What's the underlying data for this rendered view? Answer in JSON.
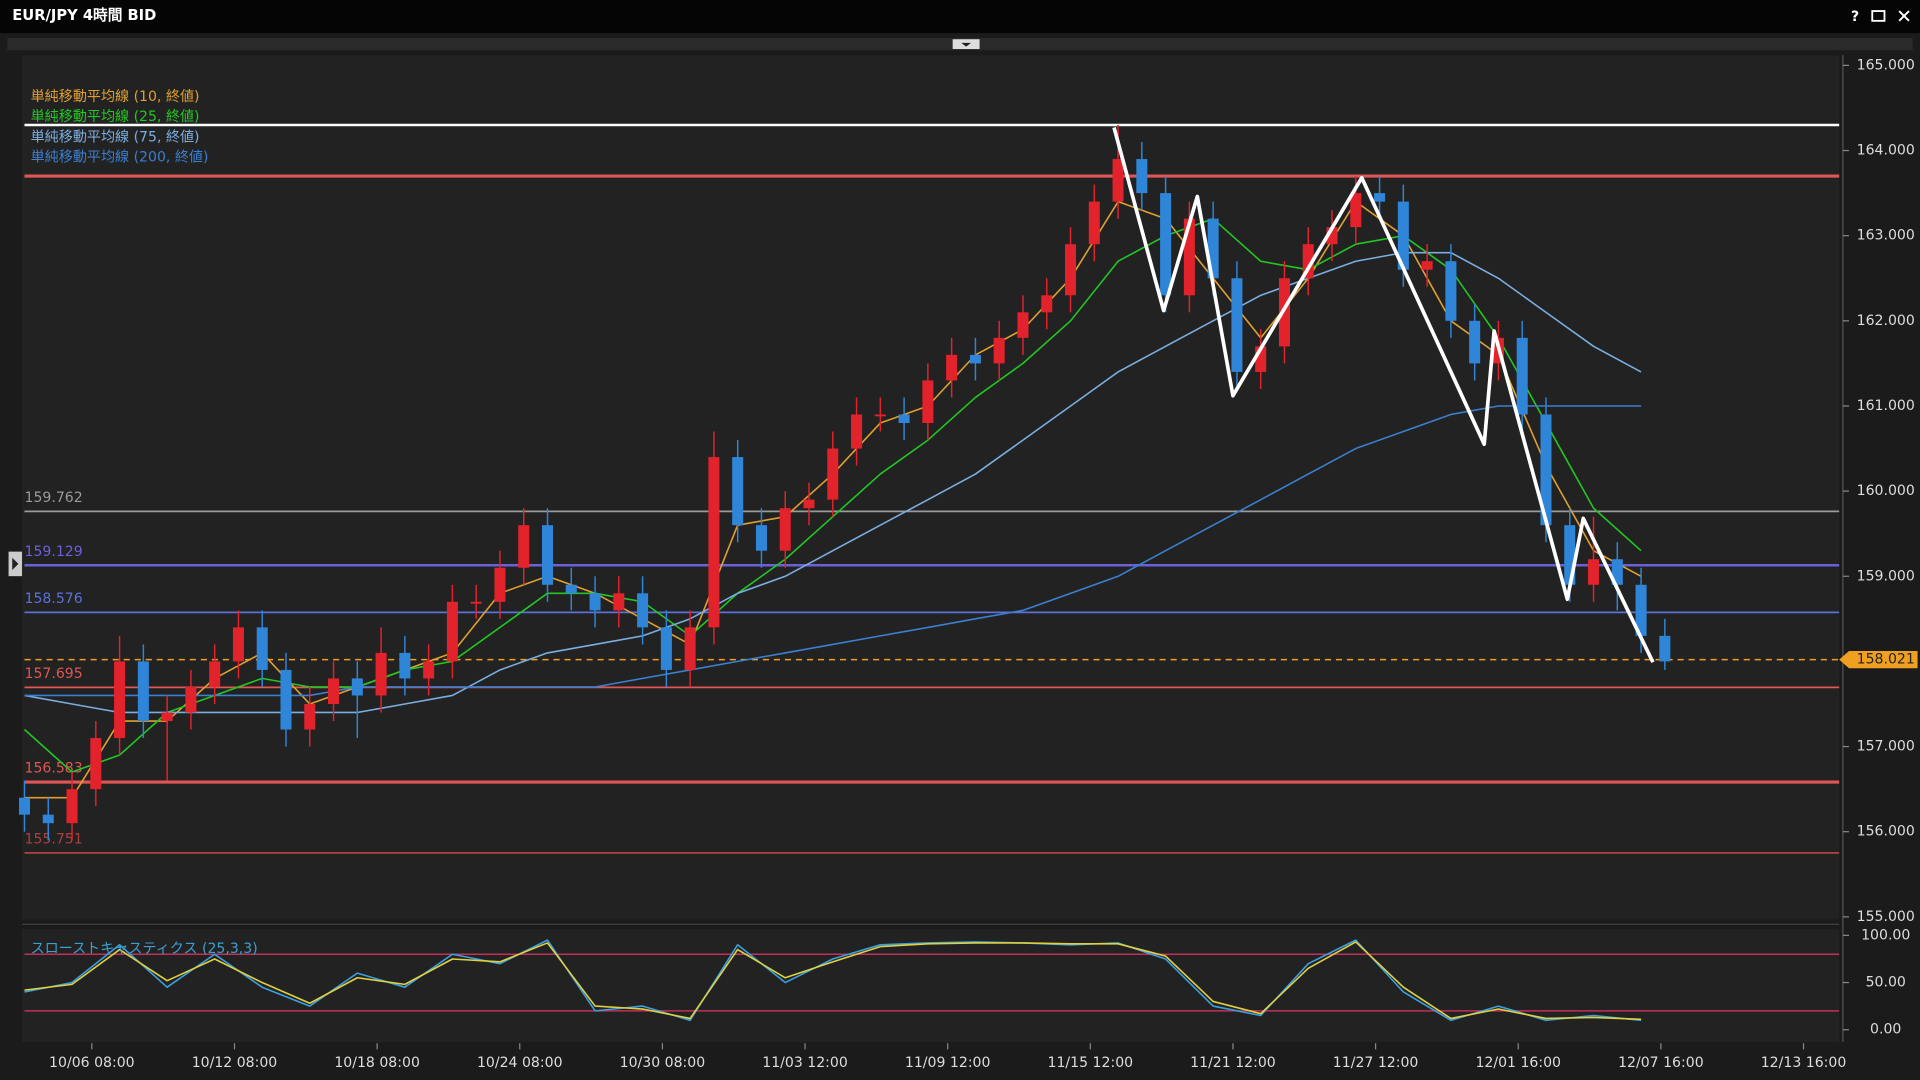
{
  "window": {
    "title": "EUR/JPY 4時間 BID",
    "help": "?"
  },
  "chart_data": [
    {
      "type": "candlestick",
      "up_color": "#e3232c",
      "down_color": "#2f86d8",
      "xlim": [
        0,
        458
      ],
      "ylim": [
        154.97,
        165.12
      ],
      "yticks": [
        {
          "value": 165,
          "label": "165.000"
        },
        {
          "value": 164,
          "label": "164.000"
        },
        {
          "value": 163,
          "label": "163.000"
        },
        {
          "value": 162,
          "label": "162.000"
        },
        {
          "value": 161,
          "label": "161.000"
        },
        {
          "value": 160,
          "label": "160.000"
        },
        {
          "value": 159,
          "label": "159.000"
        },
        {
          "value": 158,
          "label": "158.000"
        },
        {
          "value": 157,
          "label": "157.000"
        },
        {
          "value": 156,
          "label": "156.000"
        },
        {
          "value": 155,
          "label": "155.000"
        }
      ],
      "xticks": [
        {
          "value": 17,
          "label": "10/06 08:00"
        },
        {
          "value": 53,
          "label": "10/12 08:00"
        },
        {
          "value": 89,
          "label": "10/18 08:00"
        },
        {
          "value": 125,
          "label": "10/24 08:00"
        },
        {
          "value": 161,
          "label": "10/30 08:00"
        },
        {
          "value": 197,
          "label": "11/03 12:00"
        },
        {
          "value": 233,
          "label": "11/09 12:00"
        },
        {
          "value": 269,
          "label": "11/15 12:00"
        },
        {
          "value": 305,
          "label": "11/21 12:00"
        },
        {
          "value": 341,
          "label": "11/27 12:00"
        },
        {
          "value": 377,
          "label": "12/01 16:00"
        },
        {
          "value": 413,
          "label": "12/07 16:00"
        },
        {
          "value": 449,
          "label": "12/13 16:00"
        }
      ],
      "candles": {
        "x": [
          0,
          6,
          12,
          18,
          24,
          30,
          36,
          42,
          48,
          54,
          60,
          66,
          72,
          78,
          84,
          90,
          96,
          102,
          108,
          114,
          120,
          126,
          132,
          138,
          144,
          150,
          156,
          162,
          168,
          174,
          180,
          186,
          192,
          198,
          204,
          210,
          216,
          222,
          228,
          234,
          240,
          246,
          252,
          258,
          264,
          270,
          276,
          282,
          288,
          294,
          300,
          306,
          312,
          318,
          324,
          330,
          336,
          342,
          348,
          354,
          360,
          366,
          372,
          378,
          384,
          390,
          396,
          402,
          408,
          414
        ],
        "open": [
          156.4,
          156.2,
          156.1,
          156.5,
          157.1,
          158.0,
          157.3,
          157.4,
          157.7,
          158.0,
          158.4,
          157.9,
          157.2,
          157.5,
          157.8,
          157.6,
          158.1,
          157.8,
          158.0,
          158.7,
          158.7,
          159.1,
          159.6,
          158.9,
          158.8,
          158.6,
          158.8,
          158.4,
          157.9,
          158.4,
          160.4,
          159.6,
          159.3,
          159.8,
          159.9,
          160.5,
          160.9,
          160.9,
          160.8,
          161.3,
          161.6,
          161.5,
          161.8,
          162.1,
          162.3,
          162.9,
          163.4,
          163.9,
          163.5,
          162.3,
          163.2,
          162.5,
          161.4,
          161.7,
          162.5,
          162.9,
          163.1,
          163.5,
          163.4,
          162.6,
          162.7,
          162.0,
          161.5,
          161.8,
          160.9,
          159.6,
          158.9,
          159.2,
          158.9,
          158.3
        ],
        "high": [
          156.6,
          156.4,
          156.7,
          157.3,
          158.3,
          158.2,
          157.6,
          157.9,
          158.2,
          158.6,
          158.6,
          158.1,
          157.7,
          158.0,
          158.0,
          158.4,
          158.3,
          158.2,
          158.9,
          158.9,
          159.3,
          159.8,
          159.8,
          159.1,
          159.0,
          159.0,
          159.0,
          158.6,
          158.6,
          160.7,
          160.6,
          159.8,
          160.0,
          160.1,
          160.7,
          161.1,
          161.1,
          161.1,
          161.5,
          161.8,
          161.8,
          162.0,
          162.3,
          162.5,
          163.1,
          163.6,
          164.3,
          164.1,
          163.7,
          163.4,
          163.4,
          162.7,
          161.9,
          162.7,
          163.1,
          163.3,
          163.7,
          163.7,
          163.6,
          162.9,
          162.9,
          162.2,
          162.0,
          162.0,
          161.1,
          159.8,
          159.7,
          159.4,
          159.1,
          158.5
        ],
        "low": [
          156.0,
          155.9,
          155.9,
          156.3,
          156.9,
          157.1,
          156.6,
          157.2,
          157.5,
          157.8,
          157.7,
          157.0,
          157.0,
          157.3,
          157.1,
          157.4,
          157.6,
          157.6,
          157.8,
          158.5,
          158.5,
          158.9,
          158.7,
          158.6,
          158.4,
          158.4,
          158.2,
          157.7,
          157.7,
          158.2,
          159.4,
          159.1,
          159.1,
          159.6,
          159.7,
          160.3,
          160.7,
          160.6,
          160.6,
          161.1,
          161.3,
          161.3,
          161.6,
          161.9,
          162.1,
          162.7,
          163.2,
          163.3,
          162.1,
          162.1,
          162.3,
          161.2,
          161.2,
          161.5,
          162.3,
          162.7,
          162.9,
          163.2,
          162.4,
          162.4,
          161.8,
          161.3,
          161.3,
          160.7,
          159.4,
          158.7,
          158.7,
          158.6,
          158.1,
          157.9
        ],
        "close": [
          156.2,
          156.1,
          156.5,
          157.1,
          158.0,
          157.3,
          157.4,
          157.7,
          158.0,
          158.4,
          157.9,
          157.2,
          157.5,
          157.8,
          157.6,
          158.1,
          157.8,
          158.0,
          158.7,
          158.7,
          159.1,
          159.6,
          158.9,
          158.8,
          158.6,
          158.8,
          158.4,
          157.9,
          158.4,
          160.4,
          159.6,
          159.3,
          159.8,
          159.9,
          160.5,
          160.9,
          160.9,
          160.8,
          161.3,
          161.6,
          161.5,
          161.8,
          162.1,
          162.3,
          162.9,
          163.4,
          163.9,
          163.5,
          162.3,
          163.2,
          162.5,
          161.4,
          161.7,
          162.5,
          162.9,
          163.1,
          163.5,
          163.4,
          162.6,
          162.7,
          162.0,
          161.5,
          161.8,
          160.9,
          159.6,
          158.9,
          159.2,
          158.9,
          158.3,
          158.0
        ]
      },
      "line_x": [
        0,
        12,
        24,
        36,
        48,
        60,
        72,
        84,
        96,
        108,
        120,
        132,
        144,
        156,
        168,
        180,
        192,
        204,
        216,
        228,
        240,
        252,
        264,
        276,
        288,
        300,
        312,
        324,
        336,
        348,
        360,
        372,
        384,
        396,
        408
      ],
      "series": [
        {
          "name": "単純移動平均線 (10, 終値)",
          "color": "#e0a030",
          "values": [
            156.4,
            156.4,
            157.3,
            157.3,
            157.8,
            158.1,
            157.5,
            157.7,
            157.9,
            158.1,
            158.8,
            159.0,
            158.8,
            158.5,
            158.2,
            159.6,
            159.7,
            160.2,
            160.8,
            161.0,
            161.6,
            161.9,
            162.5,
            163.4,
            163.2,
            162.5,
            161.8,
            162.5,
            163.4,
            163.0,
            162.0,
            161.6,
            160.3,
            159.3,
            159.0
          ]
        },
        {
          "name": "単純移動平均線 (25, 終値)",
          "color": "#22c722",
          "values": [
            157.2,
            156.7,
            156.9,
            157.4,
            157.6,
            157.8,
            157.7,
            157.7,
            157.9,
            158.0,
            158.4,
            158.8,
            158.8,
            158.7,
            158.3,
            158.8,
            159.2,
            159.7,
            160.2,
            160.6,
            161.1,
            161.5,
            162.0,
            162.7,
            163.0,
            163.2,
            162.7,
            162.6,
            162.9,
            163.0,
            162.6,
            161.8,
            160.8,
            159.8,
            159.3
          ]
        },
        {
          "name": "単純移動平均線 (75, 終値)",
          "color": "#7aaee0",
          "values": [
            157.6,
            157.5,
            157.4,
            157.4,
            157.4,
            157.4,
            157.4,
            157.4,
            157.5,
            157.6,
            157.9,
            158.1,
            158.2,
            158.3,
            158.5,
            158.8,
            159.0,
            159.3,
            159.6,
            159.9,
            160.2,
            160.6,
            161.0,
            161.4,
            161.7,
            162.0,
            162.3,
            162.5,
            162.7,
            162.8,
            162.8,
            162.5,
            162.1,
            161.7,
            161.4
          ]
        },
        {
          "name": "単純移動平均線 (200, 終値)",
          "color": "#3a7fd0",
          "values": [
            157.6,
            157.6,
            157.6,
            157.6,
            157.6,
            157.6,
            157.6,
            157.7,
            157.7,
            157.7,
            157.7,
            157.7,
            157.7,
            157.8,
            157.9,
            158.0,
            158.1,
            158.2,
            158.3,
            158.4,
            158.5,
            158.6,
            158.8,
            159.0,
            159.3,
            159.6,
            159.9,
            160.2,
            160.5,
            160.7,
            160.9,
            161.0,
            161.0,
            161.0,
            161.0
          ]
        }
      ],
      "levels": [
        {
          "price": 164.3,
          "color": "#ffffff",
          "width": 2,
          "show_label": false
        },
        {
          "price": 163.7,
          "color": "#e05555",
          "width": 2.5,
          "show_label": false
        },
        {
          "price": 159.762,
          "color": "#9a9a9a",
          "width": 1.5,
          "show_label": true
        },
        {
          "price": 159.129,
          "color": "#6a60d8",
          "width": 2,
          "show_label": true
        },
        {
          "price": 158.576,
          "color": "#5a70d8",
          "width": 1.5,
          "show_label": true
        },
        {
          "price": 157.695,
          "color": "#e05555",
          "width": 1.5,
          "show_label": true
        },
        {
          "price": 156.583,
          "color": "#e05555",
          "width": 2.5,
          "show_label": true
        },
        {
          "price": 155.751,
          "color": "#a84040",
          "width": 1.5,
          "show_label": true
        }
      ],
      "current_price": 158.021,
      "current_color": "#f0a020",
      "trendline": {
        "color": "#ffffff",
        "x": [
          275,
          287.5,
          296,
          305,
          337.5,
          368.4,
          370.9,
          389.4,
          393.4,
          411
        ],
        "values": [
          164.27,
          162.12,
          163.46,
          161.12,
          163.68,
          160.55,
          161.88,
          158.73,
          159.68,
          157.99
        ]
      }
    },
    {
      "type": "line",
      "title": "スローストキャスティクス (25,3,3)",
      "title_color": "#3aa0d0",
      "xlim": [
        0,
        458
      ],
      "ylim": [
        -13,
        106.5
      ],
      "yticks": [
        {
          "value": 100,
          "label": "100.00"
        },
        {
          "value": 50,
          "label": "50.00"
        },
        {
          "value": 0,
          "label": "0.00"
        }
      ],
      "levels": [
        80,
        20
      ],
      "level_color": "#c0305a",
      "line_x": [
        0,
        12,
        24,
        36,
        48,
        60,
        72,
        84,
        96,
        108,
        120,
        132,
        144,
        156,
        168,
        180,
        192,
        204,
        216,
        228,
        240,
        252,
        264,
        276,
        288,
        300,
        312,
        324,
        336,
        348,
        360,
        372,
        384,
        396,
        408
      ],
      "series": [
        {
          "color": "#3aa0e0",
          "values": [
            40,
            50,
            90,
            45,
            80,
            45,
            25,
            60,
            45,
            80,
            70,
            95,
            20,
            25,
            10,
            90,
            50,
            75,
            90,
            92,
            93,
            92,
            90,
            92,
            75,
            25,
            15,
            70,
            95,
            40,
            10,
            25,
            10,
            15,
            10
          ]
        },
        {
          "color": "#e0d040",
          "values": [
            42,
            48,
            85,
            52,
            75,
            50,
            28,
            55,
            48,
            75,
            72,
            92,
            25,
            22,
            12,
            85,
            55,
            72,
            88,
            91,
            92,
            92,
            91,
            91,
            78,
            30,
            17,
            65,
            93,
            45,
            12,
            22,
            12,
            13,
            11
          ]
        }
      ]
    }
  ]
}
